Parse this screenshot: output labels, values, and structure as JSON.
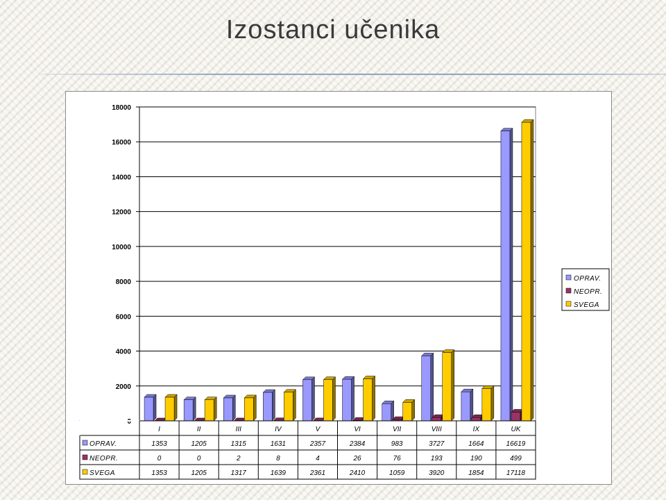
{
  "slide": {
    "title": "Izostanci učenika"
  },
  "chart_data": {
    "type": "bar",
    "title": "",
    "xlabel": "",
    "ylabel": "",
    "categories": [
      "I",
      "II",
      "III",
      "IV",
      "V",
      "VI",
      "VII",
      "VIII",
      "IX",
      "UK"
    ],
    "series": [
      {
        "name": "OPRAV.",
        "color": "#9999ff",
        "values": [
          1353,
          1205,
          1315,
          1631,
          2357,
          2384,
          983,
          3727,
          1664,
          16619
        ]
      },
      {
        "name": "NEOPR.",
        "color": "#993366",
        "values": [
          0,
          0,
          2,
          8,
          4,
          26,
          76,
          193,
          190,
          499
        ]
      },
      {
        "name": "SVEGA",
        "color": "#ffcc00",
        "values": [
          1353,
          1205,
          1317,
          1639,
          2361,
          2410,
          1059,
          3920,
          1854,
          17118
        ]
      }
    ],
    "ylim": [
      0,
      18000
    ],
    "yticks": [
      0,
      2000,
      4000,
      6000,
      8000,
      10000,
      12000,
      14000,
      16000,
      18000
    ],
    "grid": true,
    "legend_position": "right",
    "data_table": true
  }
}
